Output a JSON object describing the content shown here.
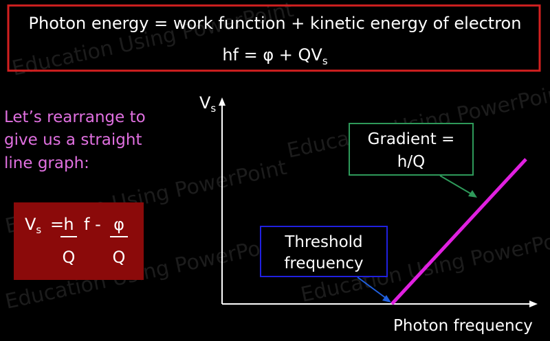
{
  "header": {
    "line1": "Photon energy = work function + kinetic energy of electron",
    "line2_main": "hf = φ + QV",
    "line2_sub": "s"
  },
  "intro": [
    "Let’s rearrange to",
    "give us a straight",
    "line graph:"
  ],
  "equation": {
    "lhs": "V",
    "lhs_sub": "s",
    "equals": "=",
    "term1_num": "h",
    "term1_den": "Q",
    "mid": "f -",
    "term2_num": "φ",
    "term2_den": "Q"
  },
  "graph": {
    "y_label": "V",
    "y_label_sub": "s",
    "x_label": "Photon frequency",
    "gradient_box": [
      "Gradient =",
      "h/Q"
    ],
    "threshold_box": [
      "Threshold",
      "frequency"
    ]
  },
  "watermark": "Education Using PowerPoint"
}
